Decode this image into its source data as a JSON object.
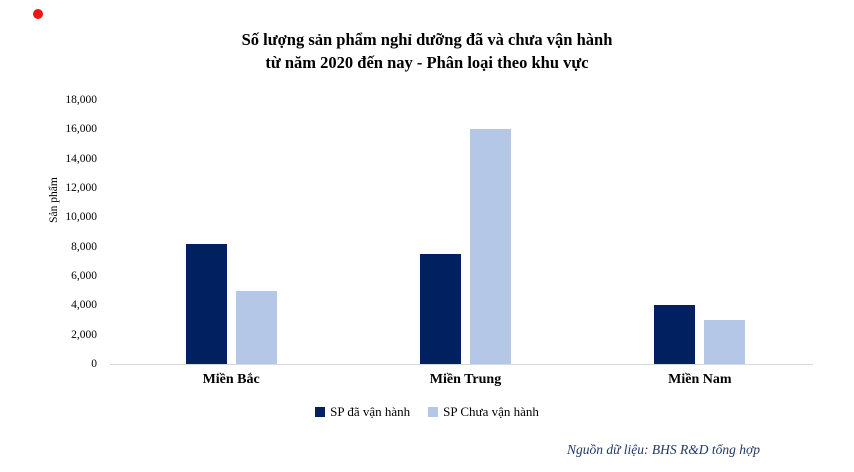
{
  "title": {
    "line1": "Số lượng sản phẩm nghỉ dưỡng đã và chưa vận hành",
    "line2": "từ năm 2020 đến nay - Phân loại theo khu vực"
  },
  "colors": {
    "series_operated": "#002060",
    "series_not_operated": "#b4c7e7",
    "axis_line": "#d9d9d9",
    "source_text": "#1f3864",
    "red_dot": "#f01414"
  },
  "chart_data": {
    "type": "bar",
    "title": "Số lượng sản phẩm nghỉ dưỡng đã và chưa vận hành từ năm 2020 đến nay - Phân loại theo khu vực",
    "categories": [
      "Miền Bắc",
      "Miền Trung",
      "Miền Nam"
    ],
    "series": [
      {
        "name": "SP đã vận hành",
        "color": "#002060",
        "values": [
          8200,
          7500,
          4000
        ]
      },
      {
        "name": "SP Chưa vận hành",
        "color": "#b4c7e7",
        "values": [
          5000,
          16000,
          3000
        ]
      }
    ],
    "xlabel": "",
    "ylabel": "Sản phẩm",
    "ylim": [
      0,
      18000
    ],
    "ytick_step": 2000,
    "ytick_labels": [
      "0",
      "2,000",
      "4,000",
      "6,000",
      "8,000",
      "10,000",
      "12,000",
      "14,000",
      "16,000",
      "18,000"
    ],
    "grid": false,
    "legend_position": "bottom",
    "source_note": "Nguồn dữ liệu: BHS R&D tổng hợp"
  }
}
